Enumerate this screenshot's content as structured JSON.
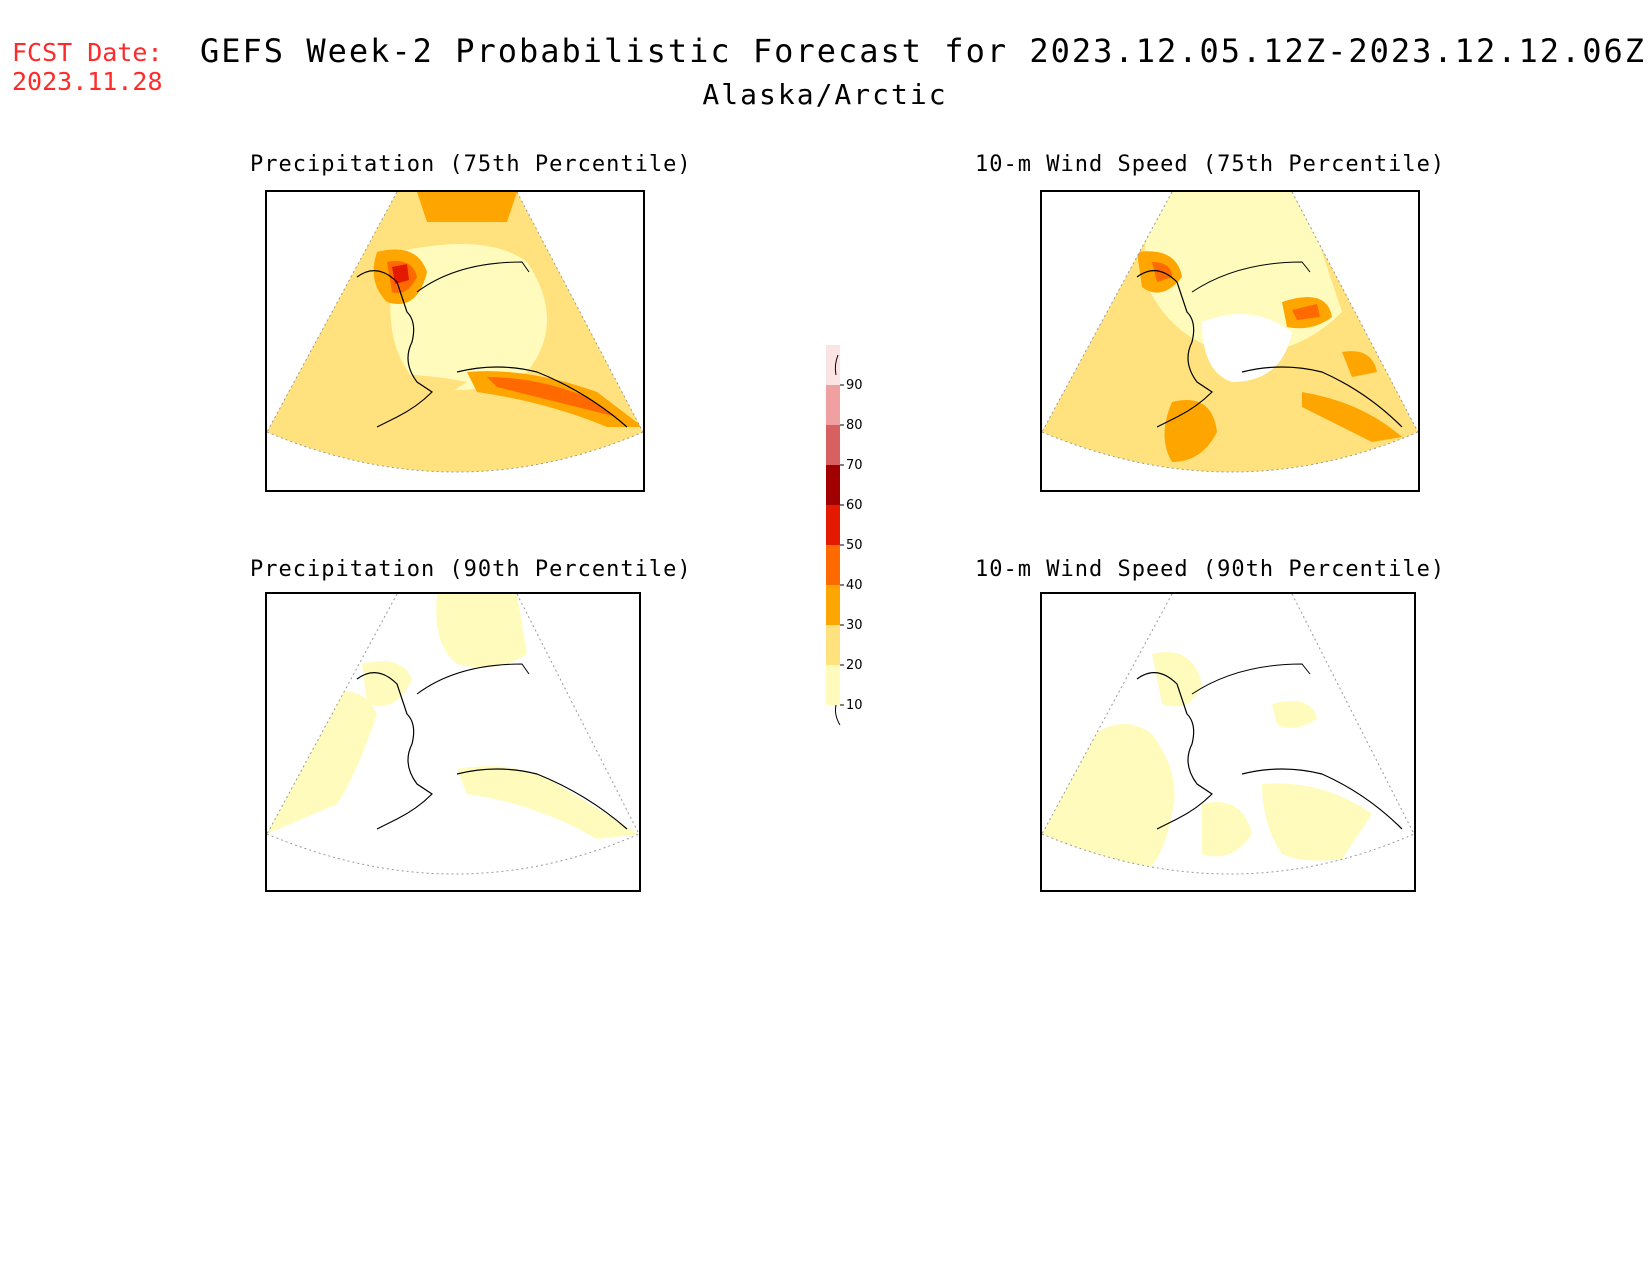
{
  "header": {
    "fcst_label": "FCST Date:",
    "fcst_date": "2023.11.28",
    "title": "GEFS Week-2 Probabilistic Forecast for 2023.12.05.12Z-2023.12.12.06Z",
    "subtitle": "Alaska/Arctic",
    "fcst_color": "#ff2a2a"
  },
  "panels": [
    {
      "title": "Precipitation (75th Percentile)",
      "intensity": "high"
    },
    {
      "title": "10-m Wind Speed (75th Percentile)",
      "intensity": "medium"
    },
    {
      "title": "Precipitation (90th Percentile)",
      "intensity": "low"
    },
    {
      "title": "10-m Wind Speed (90th Percentile)",
      "intensity": "low"
    }
  ],
  "colorbar": {
    "levels": [
      "10",
      "20",
      "30",
      "40",
      "50",
      "60",
      "70",
      "80",
      "90"
    ],
    "colors": [
      "#fffbbd",
      "#ffe27d",
      "#ffa500",
      "#ff6a00",
      "#e31a00",
      "#a00000",
      "#d96060",
      "#f0a0a0",
      "#fde4e4"
    ]
  }
}
